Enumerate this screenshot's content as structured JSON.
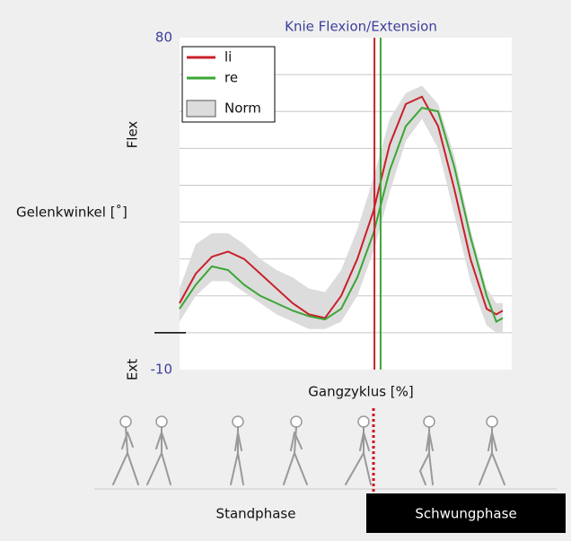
{
  "chart_data": {
    "type": "line",
    "title": "Knie Flexion/Extension",
    "xlabel": "Gangzyklus [%]",
    "ylabel": "Gelenkwinkel [˚]",
    "ylabel_top": "Flex",
    "ylabel_bottom": "Ext",
    "x": [
      0,
      5,
      10,
      15,
      20,
      25,
      30,
      35,
      40,
      45,
      50,
      55,
      60,
      65,
      70,
      75,
      80,
      85,
      90,
      95,
      98,
      100
    ],
    "xlim": [
      0,
      100
    ],
    "ylim": [
      -10,
      80
    ],
    "yticks": [
      -10,
      80
    ],
    "ygrid": [
      0,
      10,
      20,
      30,
      40,
      50,
      60,
      70
    ],
    "series": [
      {
        "name": "li",
        "color": "#c8202a",
        "toe_off": 60.3,
        "values": [
          8,
          16,
          20.6,
          22,
          20,
          16,
          12,
          8,
          5,
          4,
          10,
          20,
          33,
          51,
          62,
          64,
          56,
          39,
          20,
          6.5,
          5,
          6
        ]
      },
      {
        "name": "re",
        "color": "#3aa635",
        "toe_off": 62.2,
        "values": [
          6.5,
          13,
          18,
          17,
          13,
          10,
          8,
          6,
          4.5,
          3.6,
          6.5,
          15,
          27,
          44,
          56,
          61,
          60,
          45,
          26,
          10,
          3,
          4
        ]
      }
    ],
    "norm": {
      "name": "Norm",
      "color": "#dcdcdc",
      "lower": [
        3,
        10,
        14,
        14,
        11,
        8,
        5,
        3,
        1,
        1,
        3,
        10,
        22,
        38,
        52,
        58,
        50,
        32,
        14,
        2,
        0,
        0
      ],
      "upper": [
        12,
        24,
        27,
        27,
        24,
        20,
        17,
        15,
        12,
        11,
        17,
        28,
        42,
        58,
        65,
        67,
        62,
        48,
        28,
        12,
        8,
        8
      ]
    },
    "phases": [
      "Standphase",
      "Schwungphase"
    ]
  }
}
